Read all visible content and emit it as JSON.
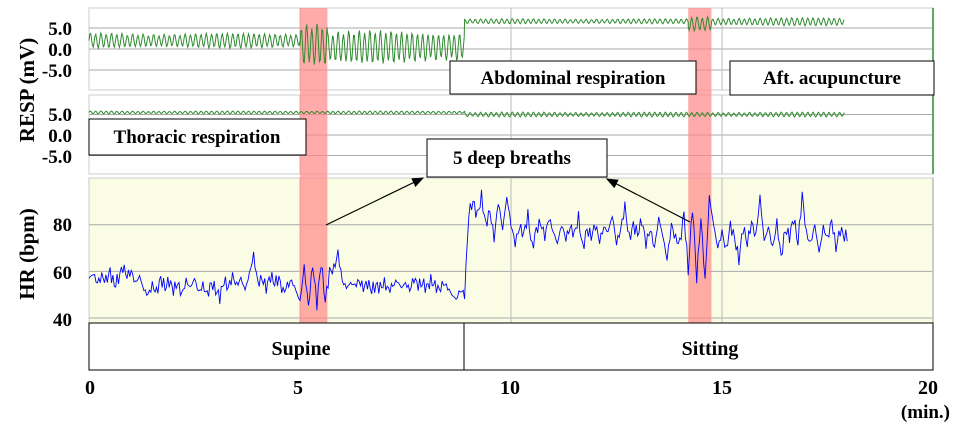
{
  "chart_data": {
    "type": "line",
    "xlabel": "(min.)",
    "xlim": [
      0,
      20
    ],
    "x_ticks": [
      "0",
      "5",
      "10",
      "15",
      "20"
    ],
    "panels": [
      {
        "name": "abdominal-resp",
        "ylabel": "RESP (mV)",
        "y_ticks": [
          "5.0",
          "0.0",
          "-5.0"
        ],
        "ylim": [
          -5,
          5
        ],
        "color": "#2e8b2e",
        "segments": [
          {
            "t0": 0.0,
            "t1": 5.0,
            "mean": 2.0,
            "amp": 1.5
          },
          {
            "t0": 5.0,
            "t1": 5.65,
            "mean": 1.0,
            "amp": 5.0
          },
          {
            "t0": 5.65,
            "t1": 8.9,
            "mean": 0.5,
            "amp": 3.3
          },
          {
            "t0": 8.9,
            "t1": 14.2,
            "mean": 6.6,
            "amp": 0.5
          },
          {
            "t0": 14.2,
            "t1": 14.75,
            "mean": 6.0,
            "amp": 1.6
          },
          {
            "t0": 14.75,
            "t1": 17.9,
            "mean": 6.5,
            "amp": 0.8
          }
        ]
      },
      {
        "name": "thoracic-resp",
        "y_ticks": [
          "5.0",
          "0.0",
          "-5.0"
        ],
        "ylim": [
          -5,
          5
        ],
        "color": "#2e8b2e",
        "segments": [
          {
            "t0": 0.0,
            "t1": 8.9,
            "mean": 5.5,
            "amp": 0.3
          },
          {
            "t0": 8.9,
            "t1": 17.9,
            "mean": 5.0,
            "amp": 0.5
          }
        ]
      },
      {
        "name": "heart-rate",
        "ylabel": "HR (bpm)",
        "y_ticks": [
          "80",
          "60",
          "40"
        ],
        "ylim": [
          40,
          80
        ],
        "color": "#0000ff",
        "dt": 0.1,
        "values": [
          57,
          59,
          55,
          58,
          56,
          60,
          54,
          57,
          62,
          58,
          60,
          55,
          58,
          52,
          50,
          54,
          51,
          57,
          53,
          56,
          52,
          55,
          50,
          56,
          53,
          57,
          51,
          54,
          50,
          55,
          52,
          49,
          56,
          53,
          58,
          54,
          57,
          52,
          59,
          67,
          55,
          57,
          53,
          58,
          55,
          57,
          51,
          54,
          56,
          52,
          47,
          62,
          45,
          63,
          46,
          64,
          47,
          60,
          61,
          68,
          56,
          53,
          55,
          54,
          56,
          53,
          55,
          52,
          54,
          53,
          55,
          52,
          54,
          56,
          53,
          55,
          52,
          57,
          54,
          55,
          53,
          56,
          54,
          52,
          55,
          53,
          50,
          48,
          52,
          50,
          85,
          90,
          84,
          92,
          80,
          86,
          74,
          90,
          78,
          92,
          80,
          72,
          79,
          76,
          84,
          70,
          78,
          81,
          75,
          83,
          77,
          72,
          80,
          74,
          79,
          76,
          83,
          70,
          78,
          75,
          80,
          73,
          79,
          77,
          84,
          72,
          78,
          88,
          74,
          80,
          76,
          82,
          72,
          78,
          70,
          83,
          75,
          65,
          80,
          74,
          72,
          85,
          60,
          88,
          57,
          83,
          56,
          92,
          80,
          70,
          77,
          69,
          80,
          74,
          65,
          79,
          72,
          81,
          75,
          92,
          73,
          79,
          70,
          81,
          66,
          78,
          75,
          83,
          72,
          93,
          76,
          72,
          80,
          68,
          79,
          74,
          82,
          70,
          78,
          75
        ]
      }
    ],
    "highlight_bands": [
      {
        "t0": 5.0,
        "t1": 5.65,
        "color": "#f88"
      },
      {
        "t0": 14.2,
        "t1": 14.75,
        "color": "#f88"
      }
    ],
    "annotations": {
      "abdominal": "Abdominal respiration",
      "thoracic": "Thoracic respiration",
      "after": "Aft. acupuncture",
      "deep_breaths": "5 deep breaths"
    },
    "conditions": [
      {
        "label": "Supine",
        "t0": 0,
        "t1": 8.9
      },
      {
        "label": "Sitting",
        "t0": 8.9,
        "t1": 20
      }
    ]
  }
}
